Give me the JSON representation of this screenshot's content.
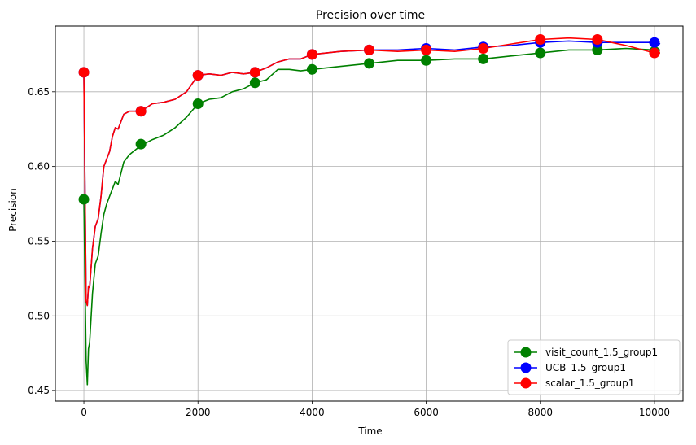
{
  "chart_data": {
    "type": "line",
    "title": "Precision over time",
    "xlabel": "Time",
    "ylabel": "Precision",
    "xlim": [
      -500,
      10500
    ],
    "ylim": [
      0.443,
      0.694
    ],
    "xticks": [
      0,
      2000,
      4000,
      6000,
      8000,
      10000
    ],
    "xtick_labels": [
      "0",
      "2000",
      "4000",
      "6000",
      "8000",
      "10000"
    ],
    "yticks": [
      0.45,
      0.5,
      0.55,
      0.6,
      0.65
    ],
    "ytick_labels": [
      "0.45",
      "0.50",
      "0.55",
      "0.60",
      "0.65"
    ],
    "grid": true,
    "legend": "bottom-right",
    "series": [
      {
        "name": "visit_count_1.5_group1",
        "color": "#008000",
        "marker_x": [
          0,
          1000,
          2000,
          3000,
          4000,
          5000,
          6000,
          7000,
          8000,
          9000,
          10000
        ],
        "marker_y": [
          0.578,
          0.615,
          0.642,
          0.656,
          0.665,
          0.669,
          0.671,
          0.672,
          0.676,
          0.678,
          0.677
        ],
        "x": [
          0,
          40,
          60,
          80,
          100,
          150,
          200,
          250,
          300,
          350,
          400,
          450,
          500,
          550,
          600,
          700,
          800,
          900,
          1000,
          1200,
          1400,
          1600,
          1800,
          2000,
          2200,
          2400,
          2600,
          2800,
          3000,
          3200,
          3400,
          3600,
          3800,
          4000,
          4500,
          5000,
          5500,
          6000,
          6500,
          7000,
          7500,
          8000,
          8500,
          9000,
          9500,
          10000,
          10100
        ],
        "y": [
          0.578,
          0.47,
          0.454,
          0.478,
          0.482,
          0.515,
          0.535,
          0.54,
          0.555,
          0.568,
          0.575,
          0.58,
          0.585,
          0.59,
          0.588,
          0.603,
          0.608,
          0.611,
          0.614,
          0.618,
          0.621,
          0.626,
          0.633,
          0.642,
          0.645,
          0.646,
          0.65,
          0.652,
          0.656,
          0.658,
          0.665,
          0.665,
          0.664,
          0.665,
          0.667,
          0.669,
          0.671,
          0.671,
          0.672,
          0.672,
          0.674,
          0.676,
          0.678,
          0.678,
          0.679,
          0.678,
          0.678
        ]
      },
      {
        "name": "UCB_1.5_group1",
        "color": "#0000ff",
        "marker_x": [
          0,
          1000,
          2000,
          3000,
          4000,
          5000,
          6000,
          7000,
          8000,
          9000,
          10000
        ],
        "marker_y": [
          0.663,
          0.637,
          0.661,
          0.663,
          0.675,
          0.678,
          0.679,
          0.68,
          0.683,
          0.683,
          0.683
        ],
        "x": [
          0,
          40,
          60,
          80,
          100,
          150,
          200,
          250,
          300,
          350,
          400,
          450,
          500,
          550,
          600,
          700,
          800,
          900,
          1000,
          1200,
          1400,
          1600,
          1800,
          2000,
          2200,
          2400,
          2600,
          2800,
          3000,
          3200,
          3400,
          3600,
          3800,
          4000,
          4500,
          5000,
          5500,
          6000,
          6500,
          7000,
          7500,
          8000,
          8500,
          9000,
          9500,
          10000,
          10100
        ],
        "y": [
          0.663,
          0.51,
          0.507,
          0.52,
          0.519,
          0.545,
          0.56,
          0.565,
          0.58,
          0.6,
          0.605,
          0.61,
          0.62,
          0.626,
          0.625,
          0.635,
          0.637,
          0.637,
          0.637,
          0.642,
          0.643,
          0.645,
          0.65,
          0.661,
          0.662,
          0.661,
          0.663,
          0.662,
          0.663,
          0.666,
          0.67,
          0.672,
          0.672,
          0.675,
          0.677,
          0.678,
          0.678,
          0.679,
          0.678,
          0.68,
          0.681,
          0.683,
          0.684,
          0.683,
          0.683,
          0.683,
          0.682
        ]
      },
      {
        "name": "scalar_1.5_group1",
        "color": "#ff0000",
        "marker_x": [
          0,
          1000,
          2000,
          3000,
          4000,
          5000,
          6000,
          7000,
          8000,
          9000,
          10000
        ],
        "marker_y": [
          0.663,
          0.637,
          0.661,
          0.663,
          0.675,
          0.678,
          0.678,
          0.679,
          0.685,
          0.685,
          0.676
        ],
        "x": [
          0,
          40,
          60,
          80,
          100,
          150,
          200,
          250,
          300,
          350,
          400,
          450,
          500,
          550,
          600,
          700,
          800,
          900,
          1000,
          1200,
          1400,
          1600,
          1800,
          2000,
          2200,
          2400,
          2600,
          2800,
          3000,
          3200,
          3400,
          3600,
          3800,
          4000,
          4500,
          5000,
          5500,
          6000,
          6500,
          7000,
          7500,
          8000,
          8500,
          9000,
          9500,
          10000,
          10100
        ],
        "y": [
          0.663,
          0.51,
          0.507,
          0.52,
          0.519,
          0.545,
          0.56,
          0.565,
          0.58,
          0.6,
          0.605,
          0.61,
          0.62,
          0.626,
          0.625,
          0.635,
          0.637,
          0.637,
          0.637,
          0.642,
          0.643,
          0.645,
          0.65,
          0.661,
          0.662,
          0.661,
          0.663,
          0.662,
          0.663,
          0.666,
          0.67,
          0.672,
          0.672,
          0.675,
          0.677,
          0.678,
          0.677,
          0.678,
          0.677,
          0.679,
          0.682,
          0.685,
          0.686,
          0.685,
          0.681,
          0.676,
          0.676
        ]
      }
    ]
  }
}
